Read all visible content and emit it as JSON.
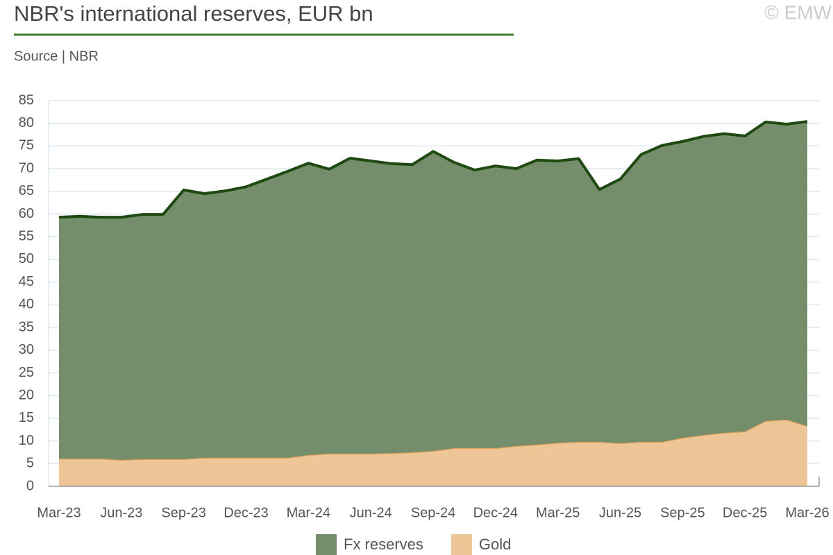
{
  "chart_data": {
    "type": "stacked_area",
    "title": "NBR's international reserves, EUR bn",
    "subtitle": "Source | NBR",
    "watermark": "© EMW",
    "categories": [
      "Mar-23",
      null,
      null,
      "Jun-23",
      null,
      null,
      "Sep-23",
      null,
      null,
      "Dec-23",
      null,
      null,
      "Mar-24",
      null,
      null,
      "Jun-24",
      null,
      null,
      "Sep-24",
      null,
      null,
      "Dec-24",
      null,
      null,
      "Mar-25",
      null,
      null,
      "Jun-25",
      null,
      null,
      "Sep-25",
      null,
      null,
      "Dec-25",
      null,
      null,
      "Mar-26"
    ],
    "series": [
      {
        "name": "Fx reserves",
        "color": "#748d6b",
        "line_color": "#1e4a12",
        "values": [
          53.2,
          53.4,
          53.2,
          53.5,
          53.9,
          53.9,
          59.3,
          58.2,
          58.8,
          59.7,
          61.4,
          63.1,
          64.3,
          62.7,
          65.1,
          64.5,
          63.8,
          63.4,
          66.0,
          63.0,
          61.3,
          62.2,
          61.1,
          62.7,
          62.1,
          62.4,
          55.6,
          58.2,
          63.3,
          65.3,
          65.3,
          65.8,
          65.9,
          65.1,
          65.9,
          65.1,
          67.1
        ]
      },
      {
        "name": "Gold",
        "color": "#eec596",
        "line_color": "#e0a25b",
        "values": [
          6.1,
          6.1,
          6.1,
          5.8,
          6.0,
          6.0,
          6.0,
          6.3,
          6.3,
          6.3,
          6.3,
          6.3,
          6.9,
          7.2,
          7.2,
          7.2,
          7.3,
          7.5,
          7.8,
          8.4,
          8.4,
          8.4,
          8.9,
          9.2,
          9.6,
          9.8,
          9.8,
          9.5,
          9.8,
          9.8,
          10.7,
          11.3,
          11.8,
          12.1,
          14.4,
          14.7,
          13.3
        ]
      }
    ],
    "ylim": [
      0,
      85
    ],
    "yticks": [
      0,
      5,
      10,
      15,
      20,
      25,
      30,
      35,
      40,
      45,
      50,
      55,
      60,
      65,
      70,
      75,
      80,
      85
    ],
    "grid": true
  }
}
